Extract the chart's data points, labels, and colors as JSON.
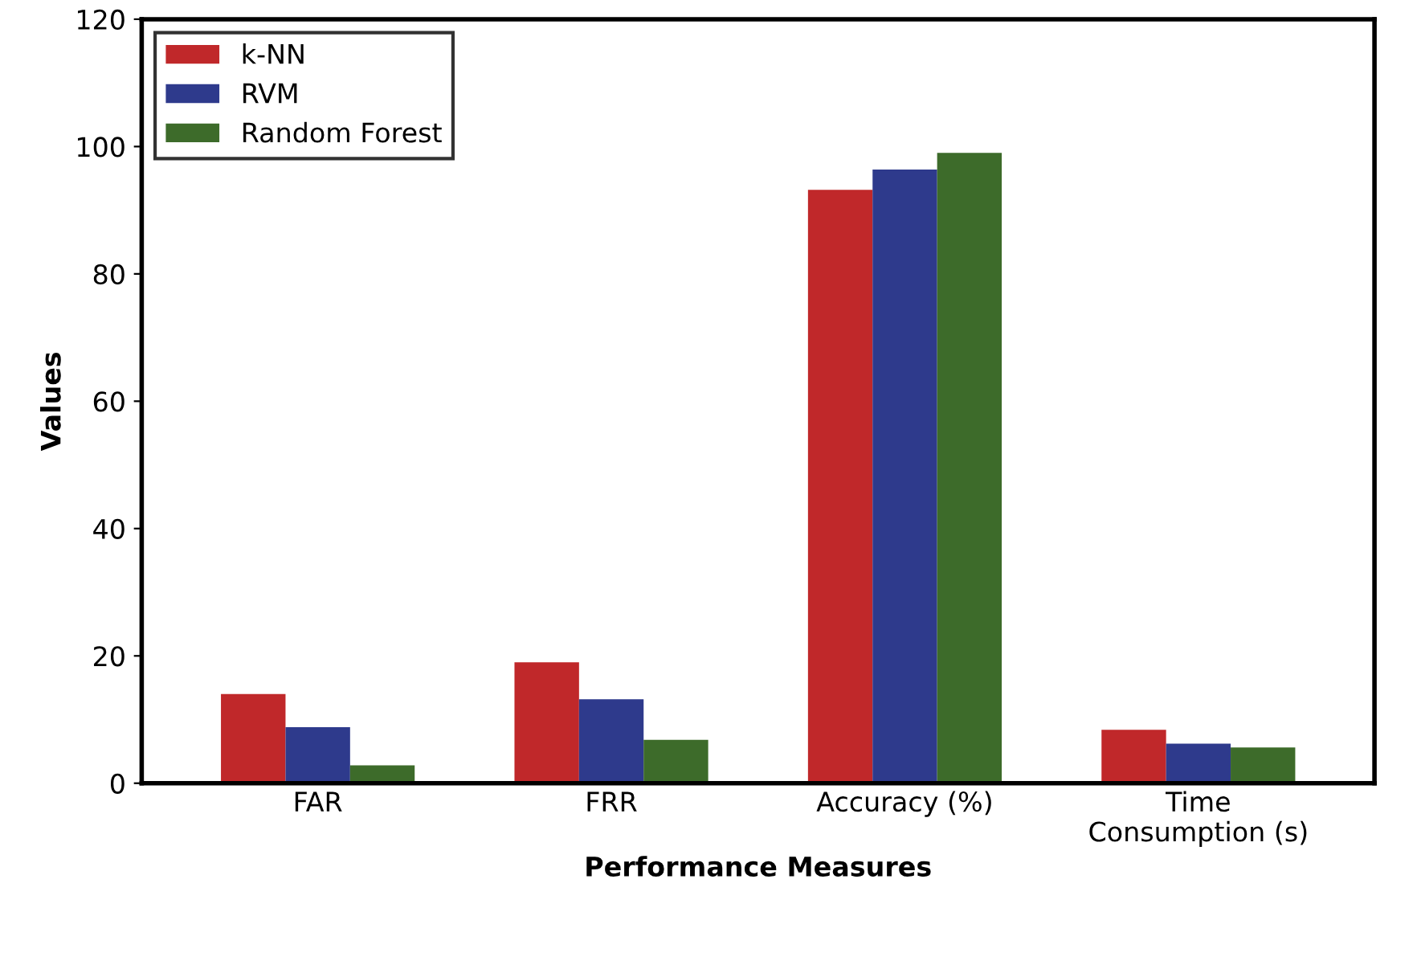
{
  "chart_data": {
    "type": "bar",
    "xlabel": "Performance Measures",
    "ylabel": "Values",
    "categories": [
      "FAR",
      "FRR",
      "Accuracy (%)",
      "Time\nConsumption (s)"
    ],
    "series": [
      {
        "name": "k-NN",
        "color": "#c0282a",
        "values": [
          14.0,
          19.0,
          93.2,
          8.4
        ]
      },
      {
        "name": "RVM",
        "color": "#2e3a8c",
        "values": [
          8.8,
          13.2,
          96.4,
          6.2
        ]
      },
      {
        "name": "Random Forest",
        "color": "#3d6b2a",
        "values": [
          2.8,
          6.8,
          99.0,
          5.6
        ]
      }
    ],
    "ylim": [
      0,
      120
    ],
    "yticks": [
      0,
      20,
      40,
      60,
      80,
      100,
      120
    ],
    "grid": false,
    "legend": "top left"
  }
}
